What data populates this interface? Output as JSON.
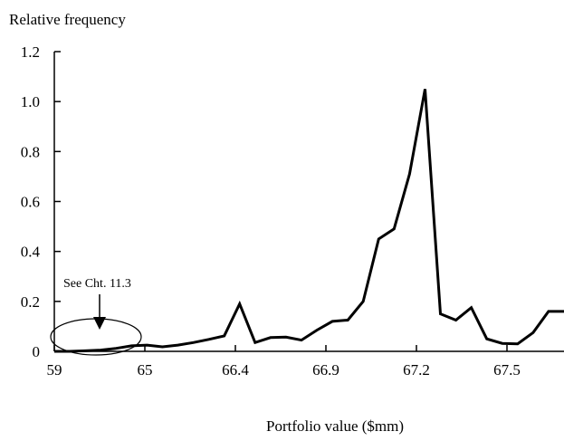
{
  "chart_data": {
    "type": "line",
    "ylabel": "Relative frequency",
    "xlabel": "Portfolio value ($mm)",
    "x_tick_labels": [
      "59",
      "65",
      "66.4",
      "66.9",
      "67.2",
      "67.5"
    ],
    "y_tick_labels": [
      "0",
      "0.2",
      "0.4",
      "0.6",
      "0.8",
      "1.0",
      "1.2"
    ],
    "ylim": [
      0,
      1.2
    ],
    "grid": false,
    "legend": "none",
    "series_color": "#000000",
    "series": [
      {
        "values": [
          0.0,
          0.0,
          0.002,
          0.005,
          0.012,
          0.022,
          0.025,
          0.018,
          0.025,
          0.035,
          0.048,
          0.062,
          0.19,
          0.035,
          0.055,
          0.057,
          0.045,
          0.085,
          0.12,
          0.125,
          0.2,
          0.45,
          0.49,
          0.71,
          1.05,
          0.15,
          0.125,
          0.175,
          0.05,
          0.032,
          0.03,
          0.075,
          0.16,
          0.16
        ]
      }
    ],
    "annotation": {
      "text": "See Cht. 11.3",
      "highlights": "low tail near 59–65"
    }
  }
}
